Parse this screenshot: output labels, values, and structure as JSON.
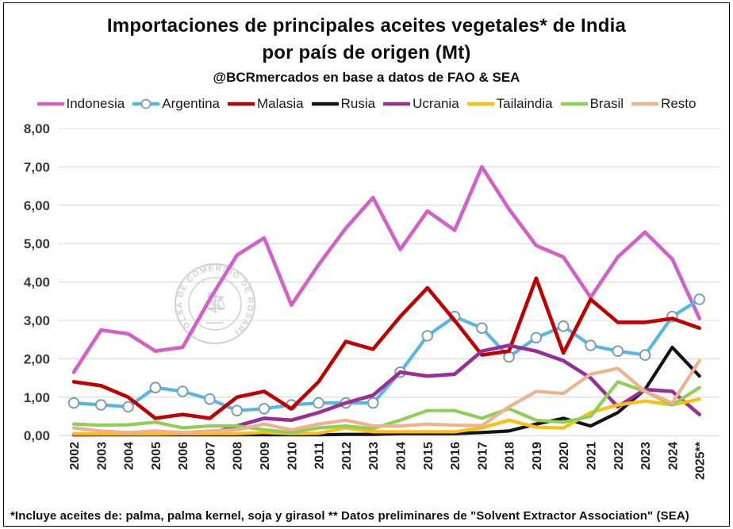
{
  "chart_data": {
    "type": "line",
    "title": "Importaciones de principales aceites vegetales* de India\npor país de origen (Mt)",
    "title_line1": "Importaciones de principales aceites vegetales* de India",
    "title_line2": "por país de origen (Mt)",
    "subtitle": "@BCRmercados en base a datos de FAO & SEA",
    "footnote": "*Incluye aceites de: palma, palma kernel, soja y girasol ** Datos preliminares de \"Solvent Extractor Association\" (SEA)",
    "watermark": "BOLSA DE COMERCIO DE ROSARIO",
    "ylabel": "",
    "xlabel": "",
    "ylim": [
      0,
      8
    ],
    "grid": true,
    "legend_position": "top",
    "y_ticks": [
      "8,00",
      "7,00",
      "6,00",
      "5,00",
      "4,00",
      "3,00",
      "2,00",
      "1,00",
      "0,00"
    ],
    "x_labels": [
      "2002",
      "2003",
      "2004",
      "2005",
      "2006",
      "2007",
      "2008",
      "2009",
      "2010",
      "2011",
      "2012",
      "2013",
      "2014",
      "2015",
      "2016",
      "2017",
      "2018",
      "2019",
      "2020",
      "2021",
      "2022",
      "2023",
      "2024",
      "2025**"
    ],
    "series": [
      {
        "name": "Indonesia",
        "color": "#d35fc8",
        "width": 4.6,
        "marker": false,
        "values": [
          1.65,
          2.75,
          2.65,
          2.2,
          2.3,
          3.55,
          4.7,
          5.15,
          3.4,
          4.45,
          5.4,
          6.2,
          4.85,
          5.85,
          5.35,
          7.0,
          5.9,
          4.95,
          4.65,
          3.6,
          4.65,
          5.3,
          4.6,
          3.05
        ]
      },
      {
        "name": "Argentina",
        "color": "#55b7e3",
        "width": 4.2,
        "marker": true,
        "marker_fill": "#ffffff",
        "marker_stroke": "#7d9db5",
        "values": [
          0.85,
          0.8,
          0.75,
          1.25,
          1.15,
          0.95,
          0.65,
          0.7,
          0.8,
          0.85,
          0.85,
          0.85,
          1.65,
          2.6,
          3.1,
          2.8,
          2.05,
          2.55,
          2.85,
          2.35,
          2.2,
          2.1,
          3.1,
          3.55
        ]
      },
      {
        "name": "Malasia",
        "color": "#c00000",
        "width": 4.6,
        "marker": false,
        "values": [
          1.4,
          1.3,
          1.0,
          0.45,
          0.55,
          0.45,
          1.0,
          1.15,
          0.7,
          1.4,
          2.45,
          2.25,
          3.1,
          3.85,
          3.0,
          2.1,
          2.2,
          4.1,
          2.15,
          3.55,
          2.95,
          2.95,
          3.05,
          2.8
        ]
      },
      {
        "name": "Rusia",
        "color": "#141414",
        "width": 4.2,
        "marker": false,
        "values": [
          0.02,
          0.02,
          0.02,
          0.02,
          0.02,
          0.02,
          0.02,
          0.02,
          0.02,
          0.02,
          0.03,
          0.03,
          0.05,
          0.05,
          0.05,
          0.08,
          0.12,
          0.3,
          0.45,
          0.25,
          0.6,
          1.2,
          2.3,
          1.55
        ]
      },
      {
        "name": "Ucrania",
        "color": "#9a2e97",
        "width": 4.6,
        "marker": false,
        "values": [
          0.02,
          0.03,
          0.03,
          0.03,
          0.05,
          0.05,
          0.25,
          0.45,
          0.4,
          0.6,
          0.85,
          1.05,
          1.65,
          1.55,
          1.6,
          2.2,
          2.35,
          2.2,
          1.95,
          1.5,
          0.75,
          1.2,
          1.15,
          0.55
        ]
      },
      {
        "name": "Tailaindia",
        "color": "#fdc010",
        "width": 4.2,
        "marker": false,
        "values": [
          0.05,
          0.05,
          0.05,
          0.05,
          0.05,
          0.05,
          0.05,
          0.08,
          0.05,
          0.06,
          0.2,
          0.1,
          0.1,
          0.1,
          0.1,
          0.2,
          0.4,
          0.22,
          0.2,
          0.6,
          0.8,
          0.9,
          0.8,
          0.95
        ]
      },
      {
        "name": "Brasil",
        "color": "#8ecf57",
        "width": 4.2,
        "marker": false,
        "values": [
          0.3,
          0.27,
          0.28,
          0.35,
          0.2,
          0.25,
          0.25,
          0.15,
          0.08,
          0.2,
          0.25,
          0.18,
          0.4,
          0.65,
          0.65,
          0.45,
          0.7,
          0.4,
          0.35,
          0.5,
          1.4,
          1.15,
          0.8,
          1.25
        ]
      },
      {
        "name": "Resto",
        "color": "#f0b18e",
        "width": 4.2,
        "marker": false,
        "values": [
          0.2,
          0.12,
          0.08,
          0.12,
          0.08,
          0.12,
          0.15,
          0.3,
          0.15,
          0.3,
          0.4,
          0.25,
          0.25,
          0.3,
          0.27,
          0.26,
          0.75,
          1.15,
          1.1,
          1.6,
          1.75,
          1.15,
          0.85,
          1.95
        ]
      }
    ]
  }
}
